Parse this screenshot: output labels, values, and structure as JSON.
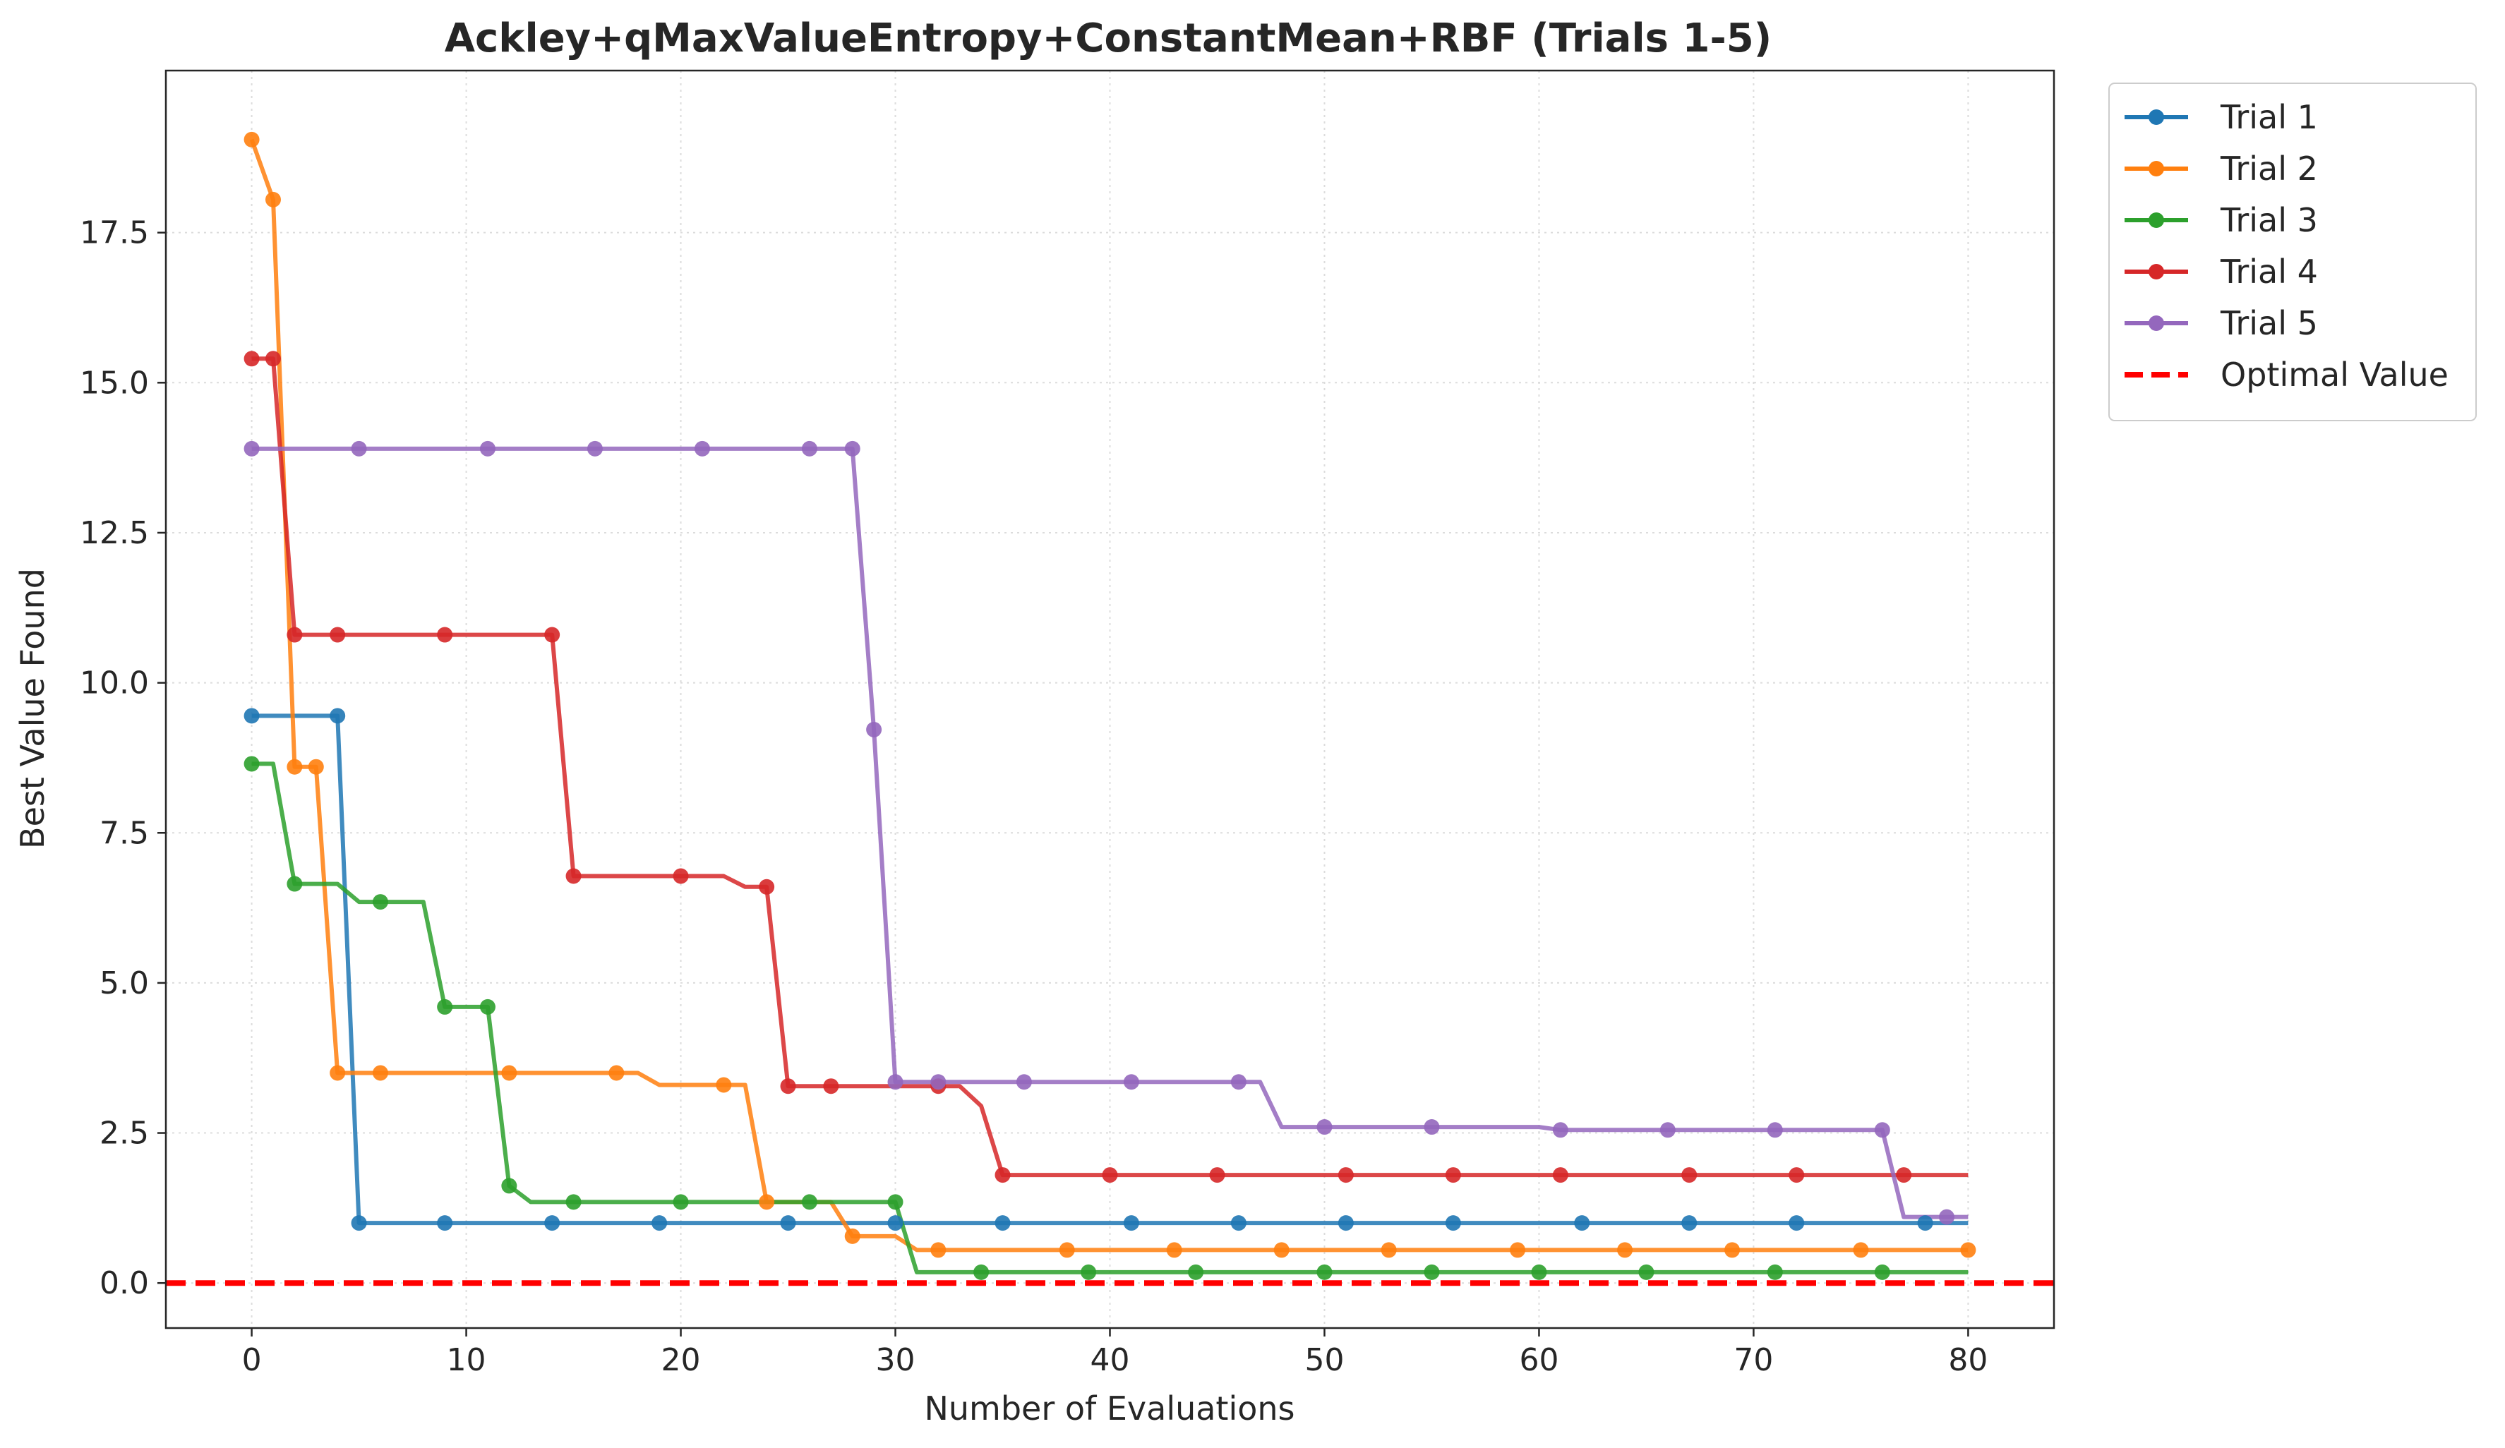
{
  "chart_data": {
    "type": "line",
    "title": "Ackley+qMaxValueEntropy+ConstantMean+RBF (Trials 1-5)",
    "xlabel": "Number of Evaluations",
    "ylabel": "Best Value Found",
    "xlim": [
      -4,
      84
    ],
    "ylim": [
      -0.75,
      20.2
    ],
    "xticks": [
      0,
      10,
      20,
      30,
      40,
      50,
      60,
      70,
      80
    ],
    "yticks": [
      0.0,
      2.5,
      5.0,
      7.5,
      10.0,
      12.5,
      15.0,
      17.5
    ],
    "xtick_labels": [
      "0",
      "10",
      "20",
      "30",
      "40",
      "50",
      "60",
      "70",
      "80"
    ],
    "ytick_labels": [
      "0.0",
      "2.5",
      "5.0",
      "7.5",
      "10.0",
      "12.5",
      "15.0",
      "17.5"
    ],
    "grid": true,
    "legend_position": "outside-top-right",
    "legend_labels": [
      "Trial 1",
      "Trial 2",
      "Trial 3",
      "Trial 4",
      "Trial 5",
      "Optimal Value"
    ],
    "reference_line": {
      "label": "Optimal Value",
      "y": 0.0,
      "color": "#ff0000",
      "style": "dashed"
    },
    "series": [
      {
        "name": "Trial 1",
        "color": "#1f77b4",
        "x": [
          0,
          1,
          2,
          3,
          4,
          5,
          6,
          7,
          8,
          9,
          10,
          11,
          12,
          13,
          14,
          15,
          16,
          17,
          18,
          19,
          20,
          21,
          22,
          23,
          24,
          25,
          26,
          27,
          28,
          29,
          30,
          31,
          32,
          33,
          34,
          35,
          36,
          37,
          38,
          39,
          40,
          41,
          42,
          43,
          44,
          45,
          46,
          47,
          48,
          49,
          50,
          51,
          52,
          53,
          54,
          55,
          56,
          57,
          58,
          59,
          60,
          61,
          62,
          63,
          64,
          65,
          66,
          67,
          68,
          69,
          70,
          71,
          72,
          73,
          74,
          75,
          76,
          77,
          78,
          79,
          80
        ],
        "y": [
          9.45,
          9.45,
          9.45,
          9.45,
          9.45,
          1.0,
          1.0,
          1.0,
          1.0,
          1.0,
          1.0,
          1.0,
          1.0,
          1.0,
          1.0,
          1.0,
          1.0,
          1.0,
          1.0,
          1.0,
          1.0,
          1.0,
          1.0,
          1.0,
          1.0,
          1.0,
          1.0,
          1.0,
          1.0,
          1.0,
          1.0,
          1.0,
          1.0,
          1.0,
          1.0,
          1.0,
          1.0,
          1.0,
          1.0,
          1.0,
          1.0,
          1.0,
          1.0,
          1.0,
          1.0,
          1.0,
          1.0,
          1.0,
          1.0,
          1.0,
          1.0,
          1.0,
          1.0,
          1.0,
          1.0,
          1.0,
          1.0,
          1.0,
          1.0,
          1.0,
          1.0,
          1.0,
          1.0,
          1.0,
          1.0,
          1.0,
          1.0,
          1.0,
          1.0,
          1.0,
          1.0,
          1.0,
          1.0,
          1.0,
          1.0,
          1.0,
          1.0,
          1.0,
          1.0,
          1.0,
          1.0
        ],
        "markers": [
          0,
          4,
          5,
          9,
          14,
          19,
          25,
          30,
          35,
          41,
          46,
          51,
          56,
          62,
          67,
          72,
          78
        ]
      },
      {
        "name": "Trial 2",
        "color": "#ff7f0e",
        "x": [
          0,
          1,
          2,
          3,
          4,
          5,
          6,
          7,
          8,
          9,
          10,
          11,
          12,
          13,
          14,
          15,
          16,
          17,
          18,
          19,
          20,
          21,
          22,
          23,
          24,
          25,
          26,
          27,
          28,
          29,
          30,
          31,
          32,
          33,
          34,
          35,
          36,
          37,
          38,
          39,
          40,
          41,
          42,
          43,
          44,
          45,
          46,
          47,
          48,
          49,
          50,
          51,
          52,
          53,
          54,
          55,
          56,
          57,
          58,
          59,
          60,
          61,
          62,
          63,
          64,
          65,
          66,
          67,
          68,
          69,
          70,
          71,
          72,
          73,
          74,
          75,
          76,
          77,
          78,
          79,
          80
        ],
        "y": [
          19.05,
          18.05,
          8.6,
          8.6,
          3.5,
          3.5,
          3.5,
          3.5,
          3.5,
          3.5,
          3.5,
          3.5,
          3.5,
          3.5,
          3.5,
          3.5,
          3.5,
          3.5,
          3.5,
          3.3,
          3.3,
          3.3,
          3.3,
          3.3,
          1.35,
          1.35,
          1.35,
          1.35,
          0.78,
          0.78,
          0.78,
          0.55,
          0.55,
          0.55,
          0.55,
          0.55,
          0.55,
          0.55,
          0.55,
          0.55,
          0.55,
          0.55,
          0.55,
          0.55,
          0.55,
          0.55,
          0.55,
          0.55,
          0.55,
          0.55,
          0.55,
          0.55,
          0.55,
          0.55,
          0.55,
          0.55,
          0.55,
          0.55,
          0.55,
          0.55,
          0.55,
          0.55,
          0.55,
          0.55,
          0.55,
          0.55,
          0.55,
          0.55,
          0.55,
          0.55,
          0.55,
          0.55,
          0.55,
          0.55,
          0.55,
          0.55,
          0.55,
          0.55,
          0.55,
          0.55,
          0.55
        ],
        "markers": [
          0,
          1,
          2,
          3,
          4,
          6,
          12,
          17,
          22,
          24,
          28,
          32,
          38,
          43,
          48,
          53,
          59,
          64,
          69,
          75,
          80
        ]
      },
      {
        "name": "Trial 3",
        "color": "#2ca02c",
        "x": [
          0,
          1,
          2,
          3,
          4,
          5,
          6,
          7,
          8,
          9,
          10,
          11,
          12,
          13,
          14,
          15,
          16,
          17,
          18,
          19,
          20,
          21,
          22,
          23,
          24,
          25,
          26,
          27,
          28,
          29,
          30,
          31,
          32,
          33,
          34,
          35,
          36,
          37,
          38,
          39,
          40,
          41,
          42,
          43,
          44,
          45,
          46,
          47,
          48,
          49,
          50,
          51,
          52,
          53,
          54,
          55,
          56,
          57,
          58,
          59,
          60,
          61,
          62,
          63,
          64,
          65,
          66,
          67,
          68,
          69,
          70,
          71,
          72,
          73,
          74,
          75,
          76,
          77,
          78,
          79,
          80
        ],
        "y": [
          8.65,
          8.65,
          6.65,
          6.65,
          6.65,
          6.35,
          6.35,
          6.35,
          6.35,
          4.6,
          4.6,
          4.6,
          1.62,
          1.35,
          1.35,
          1.35,
          1.35,
          1.35,
          1.35,
          1.35,
          1.35,
          1.35,
          1.35,
          1.35,
          1.35,
          1.35,
          1.35,
          1.35,
          1.35,
          1.35,
          1.35,
          0.18,
          0.18,
          0.18,
          0.18,
          0.18,
          0.18,
          0.18,
          0.18,
          0.18,
          0.18,
          0.18,
          0.18,
          0.18,
          0.18,
          0.18,
          0.18,
          0.18,
          0.18,
          0.18,
          0.18,
          0.18,
          0.18,
          0.18,
          0.18,
          0.18,
          0.18,
          0.18,
          0.18,
          0.18,
          0.18,
          0.18,
          0.18,
          0.18,
          0.18,
          0.18,
          0.18,
          0.18,
          0.18,
          0.18,
          0.18,
          0.18,
          0.18,
          0.18,
          0.18,
          0.18,
          0.18,
          0.18,
          0.18,
          0.18,
          0.18
        ],
        "markers": [
          0,
          2,
          6,
          9,
          11,
          12,
          15,
          20,
          26,
          30,
          34,
          39,
          44,
          50,
          55,
          60,
          65,
          71,
          76
        ]
      },
      {
        "name": "Trial 4",
        "color": "#d62728",
        "x": [
          0,
          1,
          2,
          3,
          4,
          5,
          6,
          7,
          8,
          9,
          10,
          11,
          12,
          13,
          14,
          15,
          16,
          17,
          18,
          19,
          20,
          21,
          22,
          23,
          24,
          25,
          26,
          27,
          28,
          29,
          30,
          31,
          32,
          33,
          34,
          35,
          36,
          37,
          38,
          39,
          40,
          41,
          42,
          43,
          44,
          45,
          46,
          47,
          48,
          49,
          50,
          51,
          52,
          53,
          54,
          55,
          56,
          57,
          58,
          59,
          60,
          61,
          62,
          63,
          64,
          65,
          66,
          67,
          68,
          69,
          70,
          71,
          72,
          73,
          74,
          75,
          76,
          77,
          78,
          79,
          80
        ],
        "y": [
          15.4,
          15.4,
          10.8,
          10.8,
          10.8,
          10.8,
          10.8,
          10.8,
          10.8,
          10.8,
          10.8,
          10.8,
          10.8,
          10.8,
          10.8,
          6.78,
          6.78,
          6.78,
          6.78,
          6.78,
          6.78,
          6.78,
          6.78,
          6.6,
          6.6,
          3.28,
          3.28,
          3.28,
          3.28,
          3.28,
          3.28,
          3.28,
          3.28,
          3.28,
          2.95,
          1.8,
          1.8,
          1.8,
          1.8,
          1.8,
          1.8,
          1.8,
          1.8,
          1.8,
          1.8,
          1.8,
          1.8,
          1.8,
          1.8,
          1.8,
          1.8,
          1.8,
          1.8,
          1.8,
          1.8,
          1.8,
          1.8,
          1.8,
          1.8,
          1.8,
          1.8,
          1.8,
          1.8,
          1.8,
          1.8,
          1.8,
          1.8,
          1.8,
          1.8,
          1.8,
          1.8,
          1.8,
          1.8,
          1.8,
          1.8,
          1.8,
          1.8,
          1.8,
          1.8,
          1.8,
          1.8
        ],
        "markers": [
          0,
          1,
          2,
          4,
          9,
          14,
          15,
          20,
          24,
          25,
          27,
          32,
          35,
          40,
          45,
          51,
          56,
          61,
          67,
          72,
          77
        ]
      },
      {
        "name": "Trial 5",
        "color": "#9467bd",
        "x": [
          0,
          1,
          2,
          3,
          4,
          5,
          6,
          7,
          8,
          9,
          10,
          11,
          12,
          13,
          14,
          15,
          16,
          17,
          18,
          19,
          20,
          21,
          22,
          23,
          24,
          25,
          26,
          27,
          28,
          29,
          30,
          31,
          32,
          33,
          34,
          35,
          36,
          37,
          38,
          39,
          40,
          41,
          42,
          43,
          44,
          45,
          46,
          47,
          48,
          49,
          50,
          51,
          52,
          53,
          54,
          55,
          56,
          57,
          58,
          59,
          60,
          61,
          62,
          63,
          64,
          65,
          66,
          67,
          68,
          69,
          70,
          71,
          72,
          73,
          74,
          75,
          76,
          77,
          78,
          79,
          80
        ],
        "y": [
          13.9,
          13.9,
          13.9,
          13.9,
          13.9,
          13.9,
          13.9,
          13.9,
          13.9,
          13.9,
          13.9,
          13.9,
          13.9,
          13.9,
          13.9,
          13.9,
          13.9,
          13.9,
          13.9,
          13.9,
          13.9,
          13.9,
          13.9,
          13.9,
          13.9,
          13.9,
          13.9,
          13.9,
          13.9,
          9.22,
          3.35,
          3.35,
          3.35,
          3.35,
          3.35,
          3.35,
          3.35,
          3.35,
          3.35,
          3.35,
          3.35,
          3.35,
          3.35,
          3.35,
          3.35,
          3.35,
          3.35,
          3.35,
          2.6,
          2.6,
          2.6,
          2.6,
          2.6,
          2.6,
          2.6,
          2.6,
          2.6,
          2.6,
          2.6,
          2.6,
          2.6,
          2.55,
          2.55,
          2.55,
          2.55,
          2.55,
          2.55,
          2.55,
          2.55,
          2.55,
          2.55,
          2.55,
          2.55,
          2.55,
          2.55,
          2.55,
          2.55,
          1.1,
          1.1,
          1.1,
          1.1
        ],
        "markers": [
          0,
          5,
          11,
          16,
          21,
          26,
          28,
          29,
          30,
          32,
          36,
          41,
          46,
          50,
          55,
          61,
          66,
          71,
          76,
          79
        ]
      }
    ]
  }
}
